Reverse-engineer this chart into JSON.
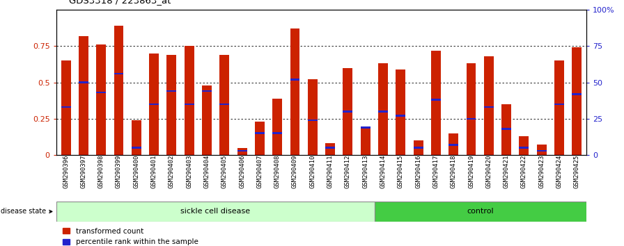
{
  "title": "GDS3318 / 223863_at",
  "samples": [
    "GSM290396",
    "GSM290397",
    "GSM290398",
    "GSM290399",
    "GSM290400",
    "GSM290401",
    "GSM290402",
    "GSM290403",
    "GSM290404",
    "GSM290405",
    "GSM290406",
    "GSM290407",
    "GSM290408",
    "GSM290409",
    "GSM290410",
    "GSM290411",
    "GSM290412",
    "GSM290413",
    "GSM290414",
    "GSM290415",
    "GSM290416",
    "GSM290417",
    "GSM290418",
    "GSM290419",
    "GSM290420",
    "GSM290421",
    "GSM290422",
    "GSM290423",
    "GSM290424",
    "GSM290425"
  ],
  "transformed_count": [
    0.65,
    0.82,
    0.76,
    0.89,
    0.24,
    0.7,
    0.69,
    0.75,
    0.48,
    0.69,
    0.05,
    0.23,
    0.39,
    0.87,
    0.52,
    0.08,
    0.6,
    0.19,
    0.63,
    0.59,
    0.1,
    0.72,
    0.15,
    0.63,
    0.68,
    0.35,
    0.13,
    0.07,
    0.65,
    0.74
  ],
  "percentile_rank": [
    0.33,
    0.5,
    0.43,
    0.56,
    0.05,
    0.35,
    0.44,
    0.35,
    0.44,
    0.35,
    0.03,
    0.15,
    0.15,
    0.52,
    0.24,
    0.05,
    0.3,
    0.19,
    0.3,
    0.27,
    0.05,
    0.38,
    0.07,
    0.25,
    0.33,
    0.18,
    0.05,
    0.03,
    0.35,
    0.42
  ],
  "sickle_cell_count": 18,
  "control_count": 12,
  "bar_color": "#cc2200",
  "percentile_color": "#2222cc",
  "sickle_color": "#ccffcc",
  "control_color": "#44cc44",
  "background_color": "#ffffff",
  "ylim": [
    0,
    1.0
  ],
  "yticks_left": [
    0,
    0.25,
    0.5,
    0.75
  ],
  "ytick_labels_left": [
    "0",
    "0.25",
    "0.5",
    "0.75"
  ],
  "yticks_right": [
    0,
    25,
    50,
    75,
    100
  ],
  "ytick_labels_right": [
    "0",
    "25",
    "50",
    "75",
    "100%"
  ]
}
